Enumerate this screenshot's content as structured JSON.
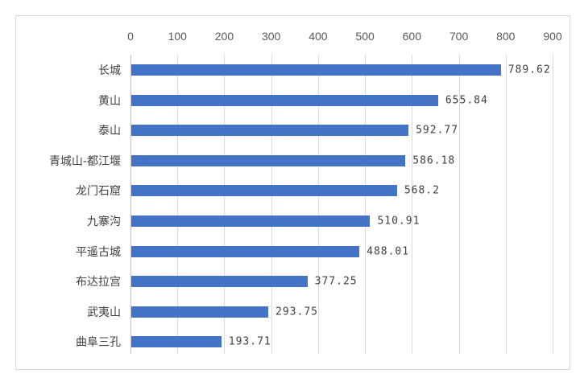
{
  "chart_data": {
    "type": "bar",
    "orientation": "horizontal",
    "title": "",
    "xlabel": "",
    "ylabel": "",
    "xlim": [
      0,
      900
    ],
    "x_ticks": [
      "0",
      "100",
      "200",
      "300",
      "400",
      "500",
      "600",
      "700",
      "800",
      "900"
    ],
    "x_tick_values": [
      0,
      100,
      200,
      300,
      400,
      500,
      600,
      700,
      800,
      900
    ],
    "grid": "vertical",
    "legend": "none",
    "categories": [
      "长城",
      "黄山",
      "泰山",
      "青城山-都江堰",
      "龙门石窟",
      "九寨沟",
      "平遥古城",
      "布达拉宫",
      "武夷山",
      "曲阜三孔"
    ],
    "values": [
      789.62,
      655.84,
      592.77,
      586.18,
      568.2,
      510.91,
      488.01,
      377.25,
      293.75,
      193.71
    ],
    "value_labels": [
      "789.62",
      "655.84",
      "592.77",
      "586.18",
      "568.2",
      "510.91",
      "488.01",
      "377.25",
      "293.75",
      "193.71"
    ],
    "bar_color": "#4472c4"
  }
}
